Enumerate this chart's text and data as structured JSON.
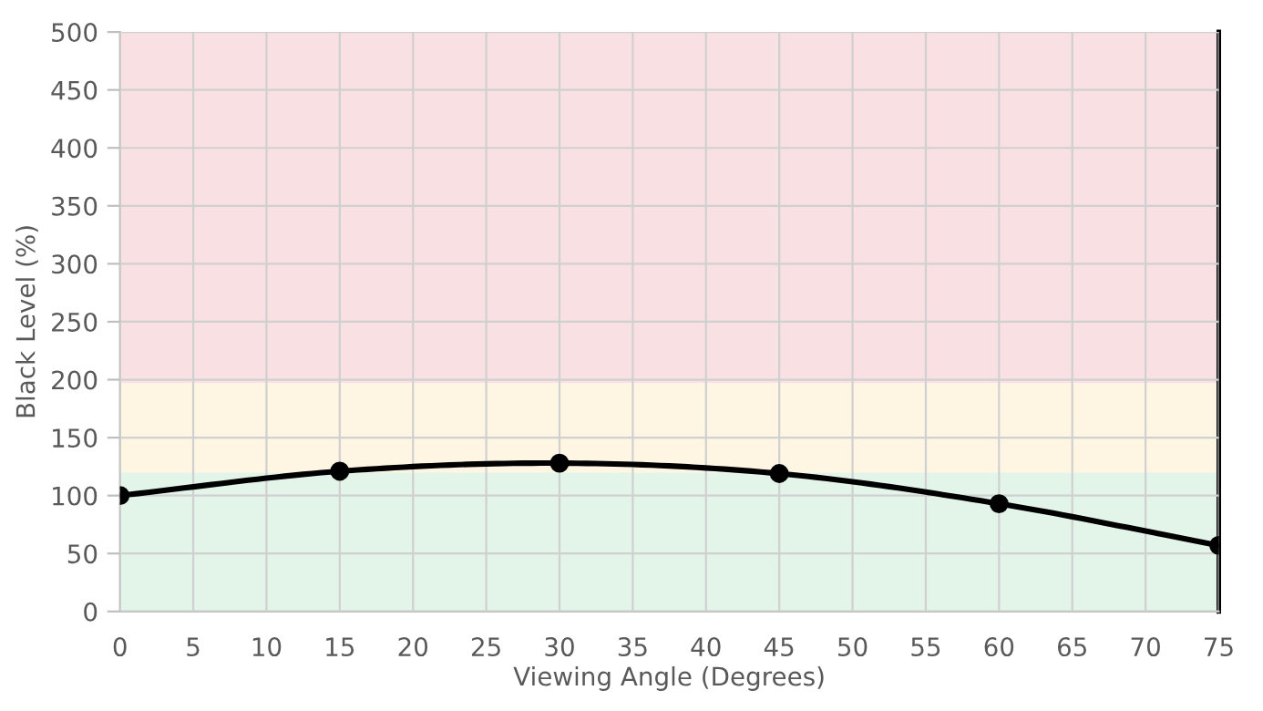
{
  "chart_data": {
    "type": "line",
    "xlabel": "Viewing Angle (Degrees)",
    "ylabel": "Black Level (%)",
    "x": [
      0,
      15,
      30,
      45,
      60,
      75
    ],
    "series": [
      {
        "color": "#000000",
        "values": [
          100,
          121,
          128,
          119,
          93,
          57
        ]
      }
    ],
    "xlim": [
      0,
      75
    ],
    "xticks": [
      0,
      5,
      10,
      15,
      20,
      25,
      30,
      35,
      40,
      45,
      50,
      55,
      60,
      65,
      70,
      75
    ],
    "ylim": [
      0,
      500
    ],
    "yticks": [
      0,
      50,
      100,
      150,
      200,
      250,
      300,
      350,
      400,
      450,
      500
    ],
    "bands": [
      {
        "axis": "y",
        "from": 0,
        "to": 120,
        "color": "#e3f4e9"
      },
      {
        "axis": "y",
        "from": 120,
        "to": 197,
        "color": "#fef6e3"
      },
      {
        "axis": "y",
        "from": 197,
        "to": 500,
        "color": "#f9e1e3"
      }
    ],
    "grid": true,
    "marker": "circle",
    "line_style": "solid",
    "legend": false
  }
}
